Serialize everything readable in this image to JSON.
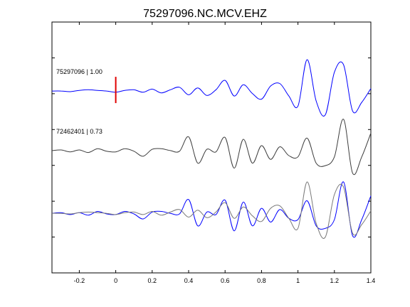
{
  "chart_data": {
    "type": "line",
    "title": "75297096.NC.MCV.EHZ",
    "xlabel": "",
    "ylabel": "",
    "xlim": [
      -0.35,
      1.4
    ],
    "xticks": [
      -0.2,
      0,
      0.2,
      0.4,
      0.6,
      0.8,
      1,
      1.2,
      1.4
    ],
    "xtick_labels": [
      "-0.2",
      "0",
      "0.2",
      "0.4",
      "0.6",
      "0.8",
      "1",
      "1.2",
      "1.4"
    ],
    "ylim": [
      -2.9,
      1.1
    ],
    "grid": false,
    "pick_time": 0,
    "colors": {
      "target": "#0000ff",
      "template": "#3c3c3c",
      "template_overlay": "#7a7a7a",
      "pick": "#e00000"
    },
    "series": [
      {
        "name": "75297096 | 1.00",
        "offset": 0,
        "x": [
          -0.35,
          -0.3,
          -0.25,
          -0.2,
          -0.15,
          -0.1,
          -0.05,
          0.0,
          0.05,
          0.1,
          0.15,
          0.2,
          0.25,
          0.3,
          0.35,
          0.4,
          0.45,
          0.5,
          0.55,
          0.6,
          0.65,
          0.7,
          0.75,
          0.8,
          0.85,
          0.9,
          0.95,
          1.0,
          1.05,
          1.1,
          1.15,
          1.2,
          1.25,
          1.3,
          1.35,
          1.4
        ],
        "y": [
          0.0,
          0.0,
          -0.01,
          0.01,
          0.02,
          0.01,
          0.0,
          -0.02,
          0.01,
          0.02,
          -0.02,
          0.03,
          -0.03,
          0.02,
          0.06,
          -0.06,
          0.05,
          -0.07,
          0.02,
          0.17,
          -0.08,
          0.1,
          -0.04,
          -0.13,
          0.08,
          0.12,
          -0.08,
          -0.24,
          0.5,
          -0.16,
          -0.38,
          0.3,
          0.42,
          -0.32,
          -0.18,
          0.04
        ]
      },
      {
        "name": "72462401 | 0.73",
        "offset": -0.95,
        "x": [
          -0.35,
          -0.3,
          -0.25,
          -0.2,
          -0.15,
          -0.1,
          -0.05,
          0.0,
          0.05,
          0.1,
          0.15,
          0.2,
          0.25,
          0.3,
          0.35,
          0.4,
          0.45,
          0.5,
          0.55,
          0.6,
          0.65,
          0.7,
          0.75,
          0.8,
          0.85,
          0.9,
          0.95,
          1.0,
          1.05,
          1.1,
          1.15,
          1.2,
          1.25,
          1.3,
          1.35,
          1.4
        ],
        "y": [
          0.0,
          0.01,
          -0.02,
          0.01,
          -0.03,
          0.03,
          -0.01,
          -0.02,
          0.03,
          -0.01,
          -0.09,
          0.02,
          0.03,
          0.0,
          -0.01,
          0.22,
          -0.2,
          0.02,
          -0.02,
          0.21,
          -0.28,
          0.18,
          -0.2,
          0.08,
          -0.14,
          0.06,
          -0.08,
          -0.1,
          0.2,
          -0.2,
          -0.24,
          -0.1,
          0.5,
          -0.36,
          -0.1,
          0.28
        ]
      },
      {
        "name": "",
        "offset": -1.95,
        "x": [
          -0.35,
          -0.3,
          -0.25,
          -0.2,
          -0.15,
          -0.1,
          -0.05,
          0.0,
          0.05,
          0.1,
          0.15,
          0.2,
          0.25,
          0.3,
          0.35,
          0.4,
          0.45,
          0.5,
          0.55,
          0.6,
          0.65,
          0.7,
          0.75,
          0.8,
          0.85,
          0.9,
          0.95,
          1.0,
          1.05,
          1.1,
          1.15,
          1.2,
          1.25,
          1.3,
          1.35,
          1.4
        ],
        "y": [
          0.0,
          0.0,
          -0.01,
          0.01,
          0.02,
          0.01,
          0.0,
          -0.02,
          0.01,
          0.02,
          -0.02,
          0.03,
          -0.03,
          0.02,
          0.06,
          -0.06,
          0.05,
          -0.07,
          0.02,
          0.17,
          -0.08,
          0.1,
          -0.04,
          -0.13,
          0.08,
          0.12,
          -0.08,
          -0.24,
          0.5,
          -0.16,
          -0.38,
          0.3,
          0.42,
          -0.32,
          -0.18,
          0.04
        ]
      },
      {
        "name": "",
        "offset": -1.95,
        "x": [
          -0.35,
          -0.3,
          -0.25,
          -0.2,
          -0.15,
          -0.1,
          -0.05,
          0.0,
          0.05,
          0.1,
          0.15,
          0.2,
          0.25,
          0.3,
          0.35,
          0.4,
          0.45,
          0.5,
          0.55,
          0.6,
          0.65,
          0.7,
          0.75,
          0.8,
          0.85,
          0.9,
          0.95,
          1.0,
          1.05,
          1.1,
          1.15,
          1.2,
          1.25,
          1.3,
          1.35,
          1.4
        ],
        "y": [
          0.0,
          0.01,
          -0.02,
          0.01,
          -0.03,
          0.03,
          -0.01,
          -0.02,
          0.03,
          -0.01,
          -0.09,
          0.02,
          0.03,
          0.0,
          -0.01,
          0.22,
          -0.2,
          0.02,
          -0.02,
          0.21,
          -0.28,
          0.18,
          -0.2,
          0.08,
          -0.14,
          0.06,
          -0.08,
          -0.1,
          0.2,
          -0.2,
          -0.24,
          -0.1,
          0.5,
          -0.36,
          -0.1,
          0.28
        ]
      }
    ]
  }
}
